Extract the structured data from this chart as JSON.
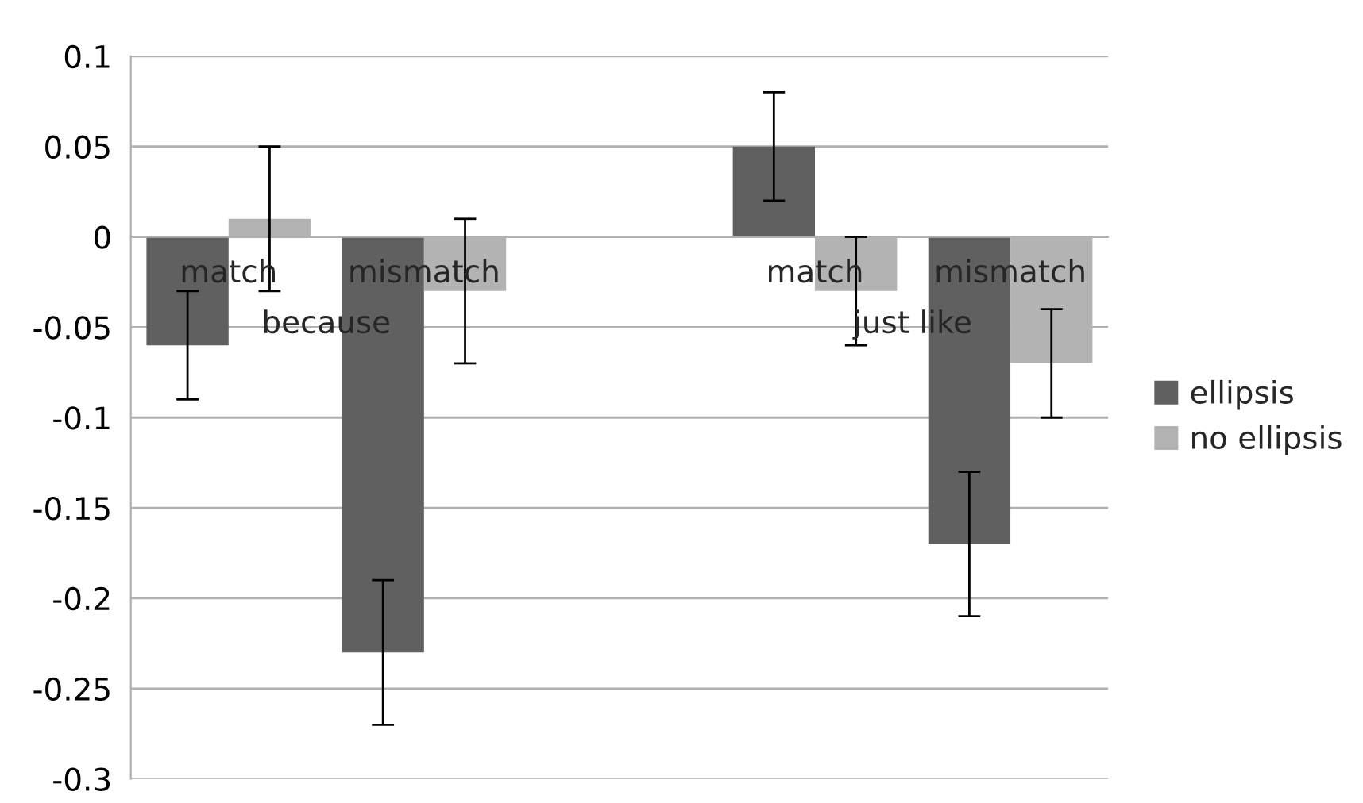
{
  "chart_data": {
    "type": "bar",
    "categories": [
      "match",
      "mismatch",
      null,
      "match",
      "mismatch"
    ],
    "series": [
      {
        "name": "ellipsis",
        "color": "#606060",
        "values": [
          -0.06,
          -0.23,
          null,
          0.05,
          -0.17
        ],
        "errors": [
          0.03,
          0.04,
          null,
          0.03,
          0.04
        ]
      },
      {
        "name": "no ellipsis",
        "color": "#b3b3b3",
        "values": [
          0.01,
          -0.03,
          null,
          -0.03,
          -0.07
        ],
        "errors": [
          0.04,
          0.04,
          null,
          0.03,
          0.03
        ]
      }
    ],
    "annotations": [
      "because",
      "just like"
    ],
    "ylim": [
      -0.3,
      0.1
    ],
    "yticks": [
      -0.3,
      -0.25,
      -0.2,
      -0.15,
      -0.1,
      -0.05,
      0,
      0.05,
      0.1
    ],
    "grid": "y",
    "legend": "right"
  }
}
